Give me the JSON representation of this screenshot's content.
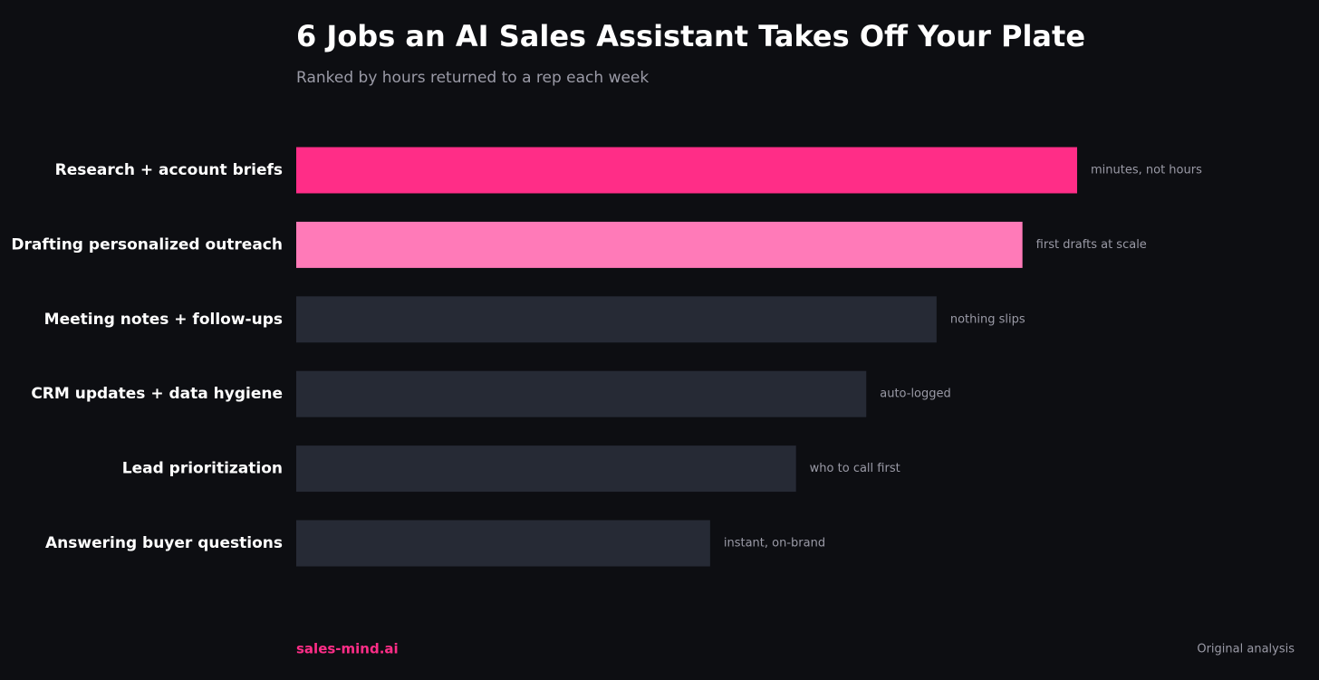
{
  "chart_data": {
    "type": "bar",
    "orientation": "horizontal",
    "title": "6 Jobs an AI Sales Assistant Takes Off Your Plate",
    "subtitle": "Ranked by hours returned to a rep each week",
    "categories": [
      "Research + account briefs",
      "Drafting personalized outreach",
      "Meeting notes + follow-ups",
      "CRM updates + data hygiene",
      "Lead prioritization",
      "Answering buyer questions"
    ],
    "values": [
      10,
      9.3,
      8.2,
      7.3,
      6.4,
      5.3
    ],
    "colors": [
      "#ff2d87",
      "#ff7ab8",
      "#262a35",
      "#262a35",
      "#262a35",
      "#262a35"
    ],
    "annotations": [
      "minutes, not hours",
      "first drafts at scale",
      "nothing slips",
      "auto-logged",
      "who to call first",
      "instant, on-brand"
    ],
    "brand": "sales-mind.ai",
    "source": "Original analysis"
  }
}
